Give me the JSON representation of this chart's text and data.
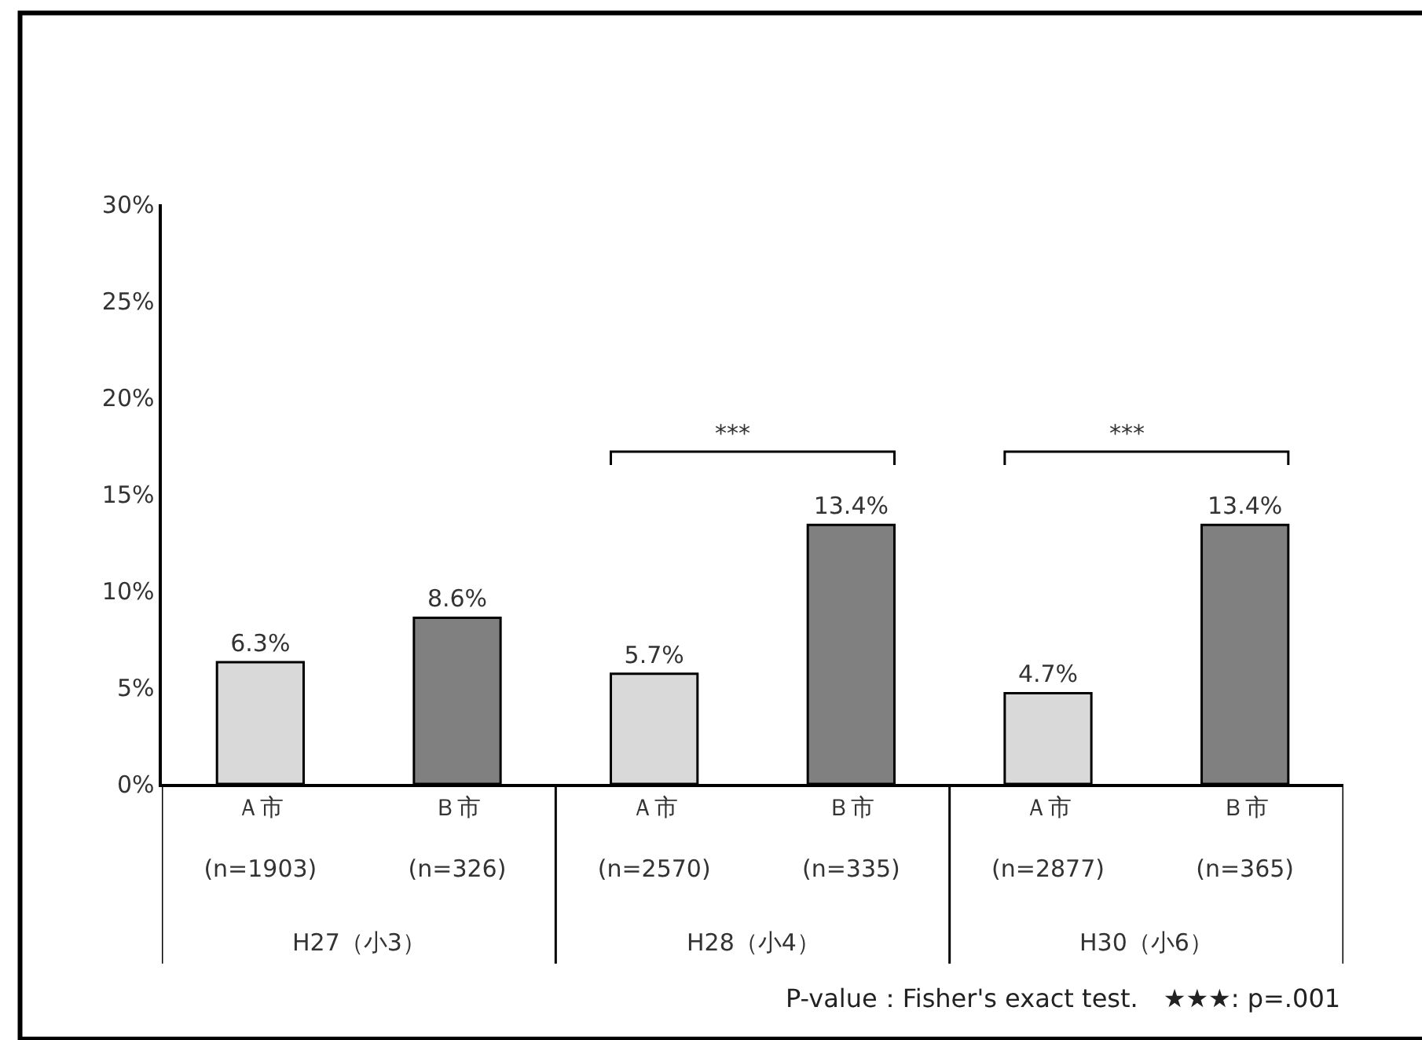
{
  "chart_data": {
    "type": "bar",
    "categories": [
      "Ａ市\n(n=1903)",
      "Ｂ市\n(n=326)",
      "Ａ市\n(n=2570)",
      "Ｂ市\n(n=335)",
      "Ａ市\n(n=2877)",
      "Ｂ市\n(n=365)"
    ],
    "values": [
      6.3,
      8.6,
      5.7,
      13.4,
      4.7,
      13.4
    ],
    "colors": [
      "#d9d9d9",
      "#808080",
      "#d9d9d9",
      "#808080",
      "#d9d9d9",
      "#808080"
    ],
    "value_labels": [
      "6.3%",
      "8.6%",
      "5.7%",
      "13.4%",
      "4.7%",
      "13.4%"
    ],
    "ylim": [
      0,
      30
    ],
    "yticks": [
      {
        "value": 0,
        "label": "0%"
      },
      {
        "value": 5,
        "label": "5%"
      },
      {
        "value": 10,
        "label": "10%"
      },
      {
        "value": 15,
        "label": "15%"
      },
      {
        "value": 20,
        "label": "20%"
      },
      {
        "value": 25,
        "label": "25%"
      },
      {
        "value": 30,
        "label": "30%"
      }
    ],
    "legend": false,
    "annotations": [
      "H27（小3）",
      "H28（小4）",
      "H30（小6）",
      "P-value：Fisher's exact test.　★★★: p=.001",
      "***",
      "***"
    ]
  }
}
